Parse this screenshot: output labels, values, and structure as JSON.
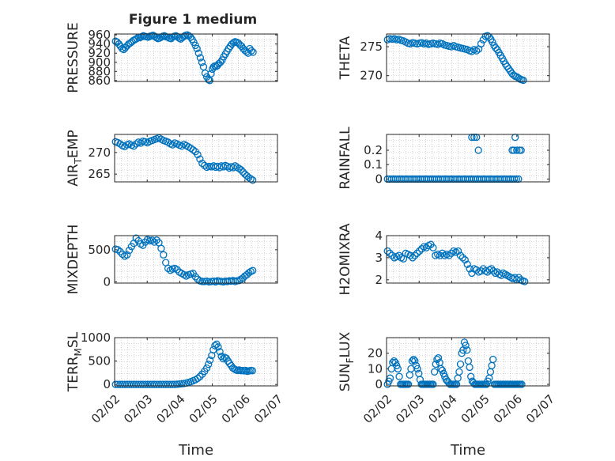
{
  "figure_title": "Figure 1 medium",
  "colors": {
    "marker": "#0072BD",
    "axis": "#262626",
    "grid": "#b0b0b0",
    "background": "#ffffff"
  },
  "chart_data": [
    {
      "type": "scatter",
      "id": "pressure",
      "title": "Figure 1 medium",
      "ylabel": "PRESSURE",
      "ylabel_sub": "",
      "xlabel": "",
      "ylim": [
        858,
        962
      ],
      "xlim": [
        0,
        5
      ],
      "yticks": [
        860,
        880,
        900,
        920,
        940,
        960
      ],
      "ytick_labels": [
        "860",
        "880",
        "900",
        "920",
        "940",
        "960"
      ],
      "x": [
        0.03,
        0.08,
        0.13,
        0.18,
        0.23,
        0.28,
        0.33,
        0.38,
        0.43,
        0.48,
        0.53,
        0.58,
        0.63,
        0.68,
        0.73,
        0.78,
        0.83,
        0.88,
        0.93,
        0.98,
        1.03,
        1.08,
        1.13,
        1.18,
        1.23,
        1.28,
        1.33,
        1.38,
        1.43,
        1.48,
        1.53,
        1.58,
        1.63,
        1.68,
        1.73,
        1.78,
        1.83,
        1.88,
        1.93,
        1.98,
        2.03,
        2.08,
        2.13,
        2.18,
        2.23,
        2.28,
        2.33,
        2.38,
        2.43,
        2.48,
        2.53,
        2.58,
        2.63,
        2.68,
        2.73,
        2.78,
        2.83,
        2.88,
        2.92,
        2.96,
        3.0,
        3.04,
        3.08,
        3.12,
        3.16,
        3.2,
        3.25,
        3.3,
        3.35,
        3.4,
        3.45,
        3.5,
        3.55,
        3.6,
        3.65,
        3.7,
        3.75,
        3.8,
        3.85,
        3.9,
        3.95,
        4.0,
        4.05,
        4.1,
        4.15,
        4.2,
        4.25
      ],
      "y": [
        946,
        944,
        940,
        935,
        930,
        928,
        932,
        936,
        940,
        942,
        945,
        948,
        950,
        952,
        955,
        954,
        956,
        958,
        957,
        956,
        955,
        957,
        958,
        959,
        957,
        954,
        952,
        953,
        955,
        957,
        958,
        956,
        955,
        953,
        952,
        955,
        957,
        958,
        956,
        953,
        951,
        954,
        957,
        959,
        960,
        958,
        955,
        950,
        944,
        937,
        930,
        920,
        910,
        900,
        890,
        876,
        868,
        862,
        860,
        875,
        885,
        890,
        892,
        891,
        893,
        897,
        900,
        905,
        912,
        918,
        924,
        930,
        935,
        940,
        943,
        945,
        944,
        942,
        938,
        935,
        930,
        926,
        923,
        920,
        930,
        925,
        922
      ]
    },
    {
      "type": "scatter",
      "id": "theta",
      "ylabel": "THETA",
      "ylabel_sub": "",
      "xlabel": "",
      "ylim": [
        269,
        277.2
      ],
      "xlim": [
        0,
        5
      ],
      "yticks": [
        270,
        275
      ],
      "ytick_labels": [
        "270",
        "275"
      ],
      "x": [
        0.03,
        0.1,
        0.17,
        0.24,
        0.31,
        0.38,
        0.45,
        0.52,
        0.59,
        0.66,
        0.73,
        0.8,
        0.87,
        0.94,
        1.01,
        1.08,
        1.15,
        1.22,
        1.29,
        1.36,
        1.43,
        1.5,
        1.57,
        1.64,
        1.71,
        1.78,
        1.85,
        1.92,
        1.99,
        2.06,
        2.13,
        2.2,
        2.27,
        2.34,
        2.41,
        2.48,
        2.55,
        2.62,
        2.69,
        2.76,
        2.83,
        2.9,
        2.97,
        3.04,
        3.1,
        3.15,
        3.2,
        3.25,
        3.3,
        3.35,
        3.4,
        3.45,
        3.5,
        3.55,
        3.6,
        3.65,
        3.7,
        3.75,
        3.8,
        3.85,
        3.9,
        3.95,
        4.0,
        4.05,
        4.1,
        4.15,
        4.2
      ],
      "y": [
        276.2,
        276.4,
        276.3,
        276.4,
        276.2,
        276.3,
        276.1,
        276.0,
        275.8,
        275.6,
        275.5,
        275.7,
        275.6,
        275.5,
        275.6,
        275.7,
        275.5,
        275.6,
        275.4,
        275.5,
        275.6,
        275.5,
        275.4,
        275.6,
        275.5,
        275.3,
        275.2,
        275.1,
        275.0,
        275.2,
        275.0,
        274.9,
        274.8,
        274.7,
        274.6,
        274.5,
        274.3,
        274.2,
        274.5,
        274.3,
        274.6,
        275.5,
        276.2,
        276.8,
        276.9,
        276.7,
        276.3,
        275.8,
        275.2,
        274.8,
        274.5,
        274.0,
        273.5,
        273.0,
        272.5,
        272.0,
        271.6,
        271.2,
        270.8,
        270.4,
        270.1,
        269.9,
        269.8,
        269.6,
        269.4,
        269.3,
        269.2
      ]
    },
    {
      "type": "scatter",
      "id": "air_temp",
      "ylabel": "AIR",
      "ylabel_sub": "T",
      "ylabel_tail": "EMP",
      "xlabel": "",
      "ylim": [
        263.2,
        274.2
      ],
      "xlim": [
        0,
        5
      ],
      "yticks": [
        265,
        270
      ],
      "ytick_labels": [
        "265",
        "270"
      ],
      "x": [
        0.03,
        0.1,
        0.17,
        0.24,
        0.31,
        0.38,
        0.45,
        0.52,
        0.59,
        0.66,
        0.73,
        0.8,
        0.87,
        0.94,
        1.01,
        1.08,
        1.15,
        1.22,
        1.29,
        1.36,
        1.43,
        1.5,
        1.57,
        1.64,
        1.71,
        1.78,
        1.85,
        1.92,
        1.99,
        2.06,
        2.13,
        2.2,
        2.27,
        2.34,
        2.41,
        2.48,
        2.55,
        2.62,
        2.69,
        2.76,
        2.83,
        2.9,
        2.97,
        3.04,
        3.1,
        3.16,
        3.22,
        3.28,
        3.34,
        3.4,
        3.46,
        3.52,
        3.58,
        3.64,
        3.7,
        3.76,
        3.82,
        3.88,
        3.94,
        4.0,
        4.06,
        4.12,
        4.18,
        4.24
      ],
      "y": [
        272.5,
        272.3,
        272.0,
        271.6,
        271.4,
        271.8,
        272.0,
        271.7,
        271.5,
        272.0,
        272.4,
        272.2,
        272.6,
        272.5,
        272.3,
        272.6,
        272.8,
        273.0,
        273.2,
        273.4,
        273.1,
        272.8,
        272.6,
        272.4,
        272.0,
        271.8,
        272.2,
        272.0,
        271.7,
        271.5,
        271.9,
        271.6,
        271.3,
        271.0,
        270.6,
        270.2,
        269.5,
        268.5,
        267.5,
        267.0,
        266.6,
        266.8,
        266.7,
        266.9,
        266.6,
        266.8,
        266.5,
        266.9,
        266.7,
        267.0,
        266.8,
        266.4,
        266.7,
        266.5,
        266.9,
        266.6,
        266.3,
        266.0,
        265.5,
        265.0,
        264.6,
        264.2,
        263.9,
        263.6
      ]
    },
    {
      "type": "scatter",
      "id": "rainfall",
      "ylabel": "RAINFALL",
      "ylabel_sub": "",
      "xlabel": "",
      "ylim": [
        -0.02,
        0.31
      ],
      "xlim": [
        0,
        5
      ],
      "yticks": [
        0,
        0.1,
        0.2
      ],
      "ytick_labels": [
        "0",
        "0.1",
        "0.2"
      ],
      "x": [
        0.03,
        0.09,
        0.15,
        0.21,
        0.27,
        0.33,
        0.39,
        0.45,
        0.51,
        0.57,
        0.63,
        0.69,
        0.75,
        0.81,
        0.87,
        0.93,
        0.99,
        1.05,
        1.11,
        1.17,
        1.23,
        1.29,
        1.35,
        1.41,
        1.47,
        1.53,
        1.59,
        1.65,
        1.71,
        1.77,
        1.83,
        1.89,
        1.95,
        2.01,
        2.07,
        2.13,
        2.19,
        2.25,
        2.31,
        2.37,
        2.43,
        2.49,
        2.55,
        2.61,
        2.67,
        2.73,
        2.79,
        2.85,
        2.91,
        2.97,
        2.62,
        2.69,
        2.76,
        2.82,
        3.03,
        3.09,
        3.15,
        3.21,
        3.27,
        3.33,
        3.39,
        3.45,
        3.51,
        3.57,
        3.63,
        3.69,
        3.75,
        3.81,
        3.87,
        3.93,
        3.99,
        4.05,
        3.86,
        3.91,
        3.95,
        4.0,
        4.08,
        4.13
      ],
      "y": [
        0,
        0,
        0,
        0,
        0,
        0,
        0,
        0,
        0,
        0,
        0,
        0,
        0,
        0,
        0,
        0,
        0,
        0,
        0,
        0,
        0,
        0,
        0,
        0,
        0,
        0,
        0,
        0,
        0,
        0,
        0,
        0,
        0,
        0,
        0,
        0,
        0,
        0,
        0,
        0,
        0,
        0,
        0,
        0,
        0,
        0,
        0,
        0,
        0,
        0,
        0.29,
        0.29,
        0.29,
        0.2,
        0,
        0,
        0,
        0,
        0,
        0,
        0,
        0,
        0,
        0,
        0,
        0,
        0,
        0,
        0,
        0,
        0,
        0,
        0.2,
        0.2,
        0.29,
        0.2,
        0.2,
        0.2
      ]
    },
    {
      "type": "scatter",
      "id": "mixdepth",
      "ylabel": "MIXDEPTH",
      "ylabel_sub": "",
      "xlabel": "",
      "ylim": [
        -20,
        720
      ],
      "xlim": [
        0,
        5
      ],
      "yticks": [
        0,
        500
      ],
      "ytick_labels": [
        "0",
        "500"
      ],
      "x": [
        0.03,
        0.1,
        0.17,
        0.24,
        0.31,
        0.38,
        0.45,
        0.52,
        0.59,
        0.66,
        0.73,
        0.8,
        0.87,
        0.94,
        1.01,
        1.08,
        1.15,
        1.22,
        1.29,
        1.36,
        1.43,
        1.5,
        1.57,
        1.64,
        1.71,
        1.78,
        1.85,
        1.92,
        1.99,
        2.06,
        2.13,
        2.2,
        2.27,
        2.34,
        2.41,
        2.48,
        2.55,
        2.62,
        2.69,
        2.76,
        2.83,
        2.9,
        2.97,
        3.04,
        3.1,
        3.16,
        3.22,
        3.28,
        3.34,
        3.4,
        3.46,
        3.52,
        3.58,
        3.64,
        3.7,
        3.76,
        3.82,
        3.88,
        3.94,
        4.0,
        4.06,
        4.12,
        4.18,
        4.24
      ],
      "y": [
        510,
        500,
        470,
        430,
        400,
        420,
        490,
        550,
        600,
        680,
        640,
        590,
        570,
        620,
        660,
        640,
        650,
        620,
        650,
        610,
        520,
        420,
        300,
        210,
        180,
        200,
        210,
        190,
        150,
        130,
        110,
        90,
        110,
        120,
        130,
        80,
        40,
        15,
        5,
        5,
        10,
        0,
        5,
        10,
        0,
        15,
        10,
        5,
        0,
        10,
        5,
        15,
        10,
        20,
        5,
        15,
        20,
        40,
        60,
        90,
        110,
        140,
        160,
        175
      ]
    },
    {
      "type": "scatter",
      "id": "h2omixra",
      "ylabel": "H2OMIXRA",
      "ylabel_sub": "",
      "xlabel": "",
      "ylim": [
        1.85,
        4.0
      ],
      "xlim": [
        0,
        5
      ],
      "yticks": [
        2,
        3,
        4
      ],
      "ytick_labels": [
        "2",
        "3",
        "4"
      ],
      "x": [
        0.03,
        0.1,
        0.17,
        0.24,
        0.31,
        0.38,
        0.45,
        0.52,
        0.59,
        0.66,
        0.73,
        0.8,
        0.87,
        0.94,
        1.01,
        1.08,
        1.15,
        1.22,
        1.29,
        1.36,
        1.43,
        1.5,
        1.57,
        1.64,
        1.71,
        1.78,
        1.85,
        1.92,
        1.99,
        2.06,
        2.13,
        2.2,
        2.27,
        2.34,
        2.41,
        2.48,
        2.55,
        2.62,
        2.69,
        2.76,
        2.83,
        2.9,
        2.97,
        3.04,
        3.1,
        3.16,
        3.22,
        3.28,
        3.34,
        3.4,
        3.46,
        3.52,
        3.58,
        3.64,
        3.7,
        3.76,
        3.82,
        3.88,
        3.94,
        4.0,
        4.06,
        4.12,
        4.18,
        4.24
      ],
      "y": [
        3.3,
        3.2,
        3.1,
        3.0,
        3.05,
        3.1,
        3.0,
        2.95,
        3.2,
        3.15,
        3.1,
        3.0,
        3.1,
        3.2,
        3.3,
        3.4,
        3.5,
        3.45,
        3.55,
        3.6,
        3.45,
        3.1,
        3.15,
        3.1,
        3.2,
        3.1,
        3.15,
        3.1,
        3.2,
        3.3,
        3.25,
        3.3,
        3.1,
        3.0,
        2.9,
        2.7,
        2.5,
        2.3,
        2.5,
        2.45,
        2.35,
        2.4,
        2.5,
        2.4,
        2.35,
        2.45,
        2.5,
        2.4,
        2.3,
        2.35,
        2.25,
        2.2,
        2.3,
        2.25,
        2.2,
        2.15,
        2.1,
        2.05,
        2.1,
        2.0,
        2.1,
        2.0,
        1.95,
        1.92
      ]
    },
    {
      "type": "scatter",
      "id": "terr_msl",
      "ylabel": "TERR",
      "ylabel_sub": "M",
      "ylabel_tail": "SL",
      "xlabel": "Time",
      "ylim": [
        -30,
        1000
      ],
      "xlim": [
        0,
        5
      ],
      "yticks": [
        0,
        500,
        1000
      ],
      "ytick_labels": [
        "0",
        "500",
        "1000"
      ],
      "xticks": [
        0,
        1,
        2,
        3,
        4,
        5
      ],
      "xtick_labels": [
        "02/02",
        "02/03",
        "02/04",
        "02/05",
        "02/06",
        "02/07"
      ],
      "x": [
        0.03,
        0.1,
        0.17,
        0.24,
        0.31,
        0.38,
        0.45,
        0.52,
        0.59,
        0.66,
        0.73,
        0.8,
        0.87,
        0.94,
        1.01,
        1.08,
        1.15,
        1.22,
        1.29,
        1.36,
        1.43,
        1.5,
        1.57,
        1.64,
        1.71,
        1.78,
        1.85,
        1.92,
        1.99,
        2.06,
        2.13,
        2.2,
        2.27,
        2.34,
        2.41,
        2.48,
        2.55,
        2.62,
        2.69,
        2.76,
        2.83,
        2.88,
        2.93,
        2.98,
        3.03,
        3.08,
        3.13,
        3.18,
        3.23,
        3.28,
        3.33,
        3.38,
        3.43,
        3.48,
        3.53,
        3.58,
        3.63,
        3.68,
        3.73,
        3.78,
        3.83,
        3.88,
        3.93,
        3.98,
        4.03,
        4.08,
        4.13,
        4.18,
        4.23
      ],
      "y": [
        0,
        0,
        0,
        0,
        0,
        0,
        0,
        0,
        0,
        0,
        0,
        0,
        0,
        0,
        0,
        0,
        0,
        0,
        0,
        0,
        0,
        0,
        0,
        0,
        0,
        0,
        0,
        5,
        10,
        15,
        20,
        30,
        45,
        60,
        80,
        100,
        130,
        170,
        220,
        280,
        350,
        430,
        520,
        620,
        740,
        830,
        860,
        800,
        700,
        600,
        550,
        580,
        560,
        500,
        450,
        400,
        350,
        330,
        310,
        300,
        310,
        295,
        300,
        290,
        300,
        280,
        290,
        300,
        295
      ]
    },
    {
      "type": "scatter",
      "id": "sun_flux",
      "ylabel": "SUN",
      "ylabel_sub": "F",
      "ylabel_tail": "LUX",
      "xlabel": "Time",
      "ylim": [
        -1,
        30
      ],
      "xlim": [
        0,
        5
      ],
      "yticks": [
        0,
        10,
        20
      ],
      "ytick_labels": [
        "0",
        "10",
        "20"
      ],
      "xticks": [
        0,
        1,
        2,
        3,
        4,
        5
      ],
      "xtick_labels": [
        "02/02",
        "02/03",
        "02/04",
        "02/05",
        "02/06",
        "02/07"
      ],
      "x": [
        0.03,
        0.07,
        0.11,
        0.15,
        0.19,
        0.23,
        0.27,
        0.31,
        0.35,
        0.39,
        0.43,
        0.47,
        0.51,
        0.55,
        0.59,
        0.63,
        0.67,
        0.71,
        0.75,
        0.79,
        0.83,
        0.87,
        0.91,
        0.95,
        0.99,
        1.03,
        1.07,
        1.11,
        1.15,
        1.19,
        1.23,
        1.27,
        1.31,
        1.35,
        1.39,
        1.43,
        1.47,
        1.51,
        1.55,
        1.59,
        1.63,
        1.67,
        1.71,
        1.75,
        1.79,
        1.83,
        1.87,
        1.91,
        1.95,
        1.99,
        2.03,
        2.07,
        2.11,
        2.15,
        2.19,
        2.23,
        2.27,
        2.31,
        2.35,
        2.39,
        2.43,
        2.47,
        2.51,
        2.55,
        2.59,
        2.63,
        2.67,
        2.71,
        2.75,
        2.79,
        2.83,
        2.87,
        2.91,
        2.95,
        2.99,
        3.03,
        3.07,
        3.11,
        3.15,
        3.19,
        3.23,
        3.27,
        3.31,
        3.35,
        3.39,
        3.43,
        3.47,
        3.51,
        3.55,
        3.59,
        3.63,
        3.67,
        3.71,
        3.75,
        3.79,
        3.83,
        3.87,
        3.91,
        3.95,
        3.99,
        4.03,
        4.07,
        4.11,
        4.15
      ],
      "y": [
        0,
        2,
        4,
        10,
        14,
        15,
        14,
        12,
        10,
        5,
        0,
        0,
        0,
        0,
        0,
        0,
        0,
        6,
        10,
        15,
        16,
        15,
        12,
        10,
        7,
        3,
        0,
        0,
        0,
        0,
        0,
        0,
        0,
        0,
        0,
        0,
        8,
        13,
        16,
        17,
        14,
        10,
        9,
        7,
        5,
        3,
        2,
        1,
        0,
        0,
        0,
        0,
        0,
        0,
        4,
        8,
        13,
        20,
        22,
        27,
        25,
        22,
        15,
        11,
        5,
        2,
        1,
        0,
        0,
        0,
        0,
        0,
        0,
        0,
        0,
        0,
        0,
        2,
        4,
        8,
        12,
        16,
        0,
        0,
        0,
        0,
        0,
        0,
        0,
        0,
        0,
        0,
        0,
        0,
        0,
        0,
        0,
        0,
        0,
        0,
        0,
        0,
        0,
        0
      ]
    }
  ]
}
